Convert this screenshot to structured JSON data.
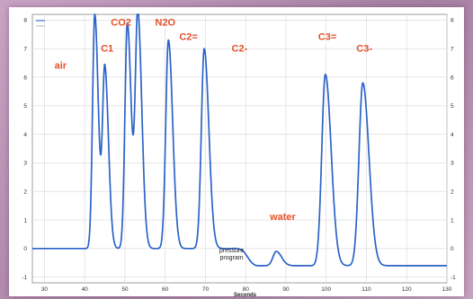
{
  "colors": {
    "line": "#2b63c8",
    "label": "#e4502a",
    "grid": "#d7d7d7",
    "background_frame": "#b58cb0"
  },
  "chart_data": {
    "type": "line",
    "xlabel": "Seconds",
    "ylabel": "",
    "xlim": [
      27,
      130
    ],
    "ylim": [
      -1.2,
      8.2
    ],
    "x_ticks": [
      30,
      40,
      50,
      60,
      70,
      80,
      90,
      100,
      110,
      120,
      130
    ],
    "y_ticks": [
      -1,
      0,
      1,
      2,
      3,
      4,
      5,
      6,
      7,
      8
    ],
    "grid": true,
    "legend": {
      "placement": "top-left",
      "entries": [
        "",
        ""
      ]
    },
    "series": [
      {
        "baseline": 0,
        "baseline_after_pressure_program": -0.6,
        "peaks": [
          {
            "label": "air",
            "x": 42.5,
            "height": 8.2
          },
          {
            "label": "C1",
            "x": 45.0,
            "height": 6.3
          },
          {
            "label": "CO2",
            "x": 50.6,
            "height": 7.9
          },
          {
            "label": "",
            "x": 53.2,
            "height": 8.2
          },
          {
            "label": "N2O",
            "x": 60.8,
            "height": 7.3
          },
          {
            "label": "C2=",
            "x": 69.7,
            "height": 7.0
          },
          {
            "label": "water",
            "x": 87.6,
            "height": 0.5
          },
          {
            "label": "C3=",
            "x": 99.8,
            "height": 6.7
          },
          {
            "label": "C3-",
            "x": 109.1,
            "height": 6.4
          }
        ]
      }
    ],
    "annotations": [
      {
        "text": "air",
        "x": 32.5,
        "y": 6.3
      },
      {
        "text": "C1",
        "x": 44.0,
        "y": 6.9
      },
      {
        "text": "CO2",
        "x": 46.5,
        "y": 7.8
      },
      {
        "text": "N2O",
        "x": 57.5,
        "y": 7.8
      },
      {
        "text": "C2=",
        "x": 63.5,
        "y": 7.3
      },
      {
        "text": "C2-",
        "x": 76.5,
        "y": 6.9
      },
      {
        "text": "water",
        "x": 86.0,
        "y": 1.0
      },
      {
        "text": "C3=",
        "x": 98.0,
        "y": 7.3
      },
      {
        "text": "C3-",
        "x": 107.5,
        "y": 6.9
      }
    ],
    "pressure_note": {
      "lines": [
        "pressure",
        "program"
      ],
      "x": 76.5,
      "y": -0.2
    }
  }
}
